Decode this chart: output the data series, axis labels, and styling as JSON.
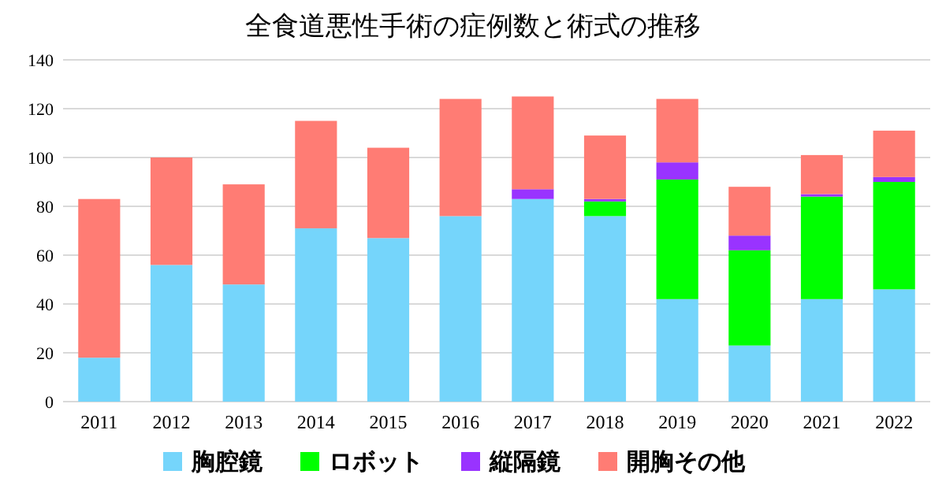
{
  "chart_data": {
    "type": "bar",
    "title": "全食道悪性手術の症例数と術式の推移",
    "stacked": true,
    "categories": [
      "2011",
      "2012",
      "2013",
      "2014",
      "2015",
      "2016",
      "2017",
      "2018",
      "2019",
      "2020",
      "2021",
      "2022"
    ],
    "series": [
      {
        "name": "胸腔鏡",
        "color": "#75d5fb",
        "values": [
          18,
          56,
          48,
          71,
          67,
          76,
          83,
          76,
          42,
          23,
          42,
          46
        ]
      },
      {
        "name": "ロボット",
        "color": "#00ff00",
        "values": [
          0,
          0,
          0,
          0,
          0,
          0,
          0,
          6,
          49,
          39,
          42,
          44
        ]
      },
      {
        "name": "縦隔鏡",
        "color": "#9933ff",
        "values": [
          0,
          0,
          0,
          0,
          0,
          0,
          4,
          1,
          7,
          6,
          1,
          2
        ]
      },
      {
        "name": "開胸その他",
        "color": "#ff7c74",
        "values": [
          65,
          44,
          41,
          44,
          37,
          48,
          38,
          26,
          26,
          20,
          16,
          19
        ]
      }
    ],
    "ylim": [
      0,
      140
    ],
    "yticks": [
      0,
      20,
      40,
      60,
      80,
      100,
      120,
      140
    ],
    "grid": "y",
    "legend": "bottom"
  }
}
